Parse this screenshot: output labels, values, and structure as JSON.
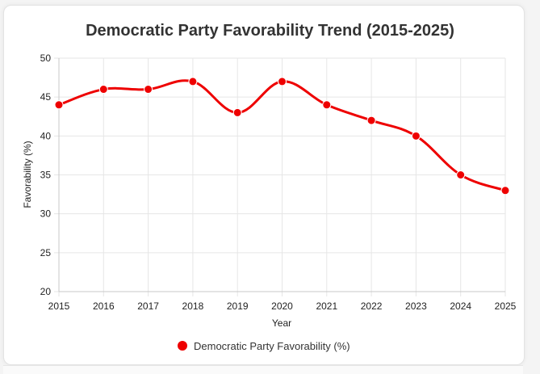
{
  "chart_data": {
    "type": "line",
    "title": "Democratic Party Favorability Trend (2015-2025)",
    "xlabel": "Year",
    "ylabel": "Favorability (%)",
    "ylim": [
      20,
      50
    ],
    "yticks": [
      "20",
      "25",
      "30",
      "35",
      "40",
      "45",
      "50"
    ],
    "categories": [
      "2015",
      "2016",
      "2017",
      "2018",
      "2019",
      "2020",
      "2021",
      "2022",
      "2023",
      "2024",
      "2025"
    ],
    "series": [
      {
        "name": "Democratic Party Favorability (%)",
        "values": [
          44,
          46,
          46,
          47,
          43,
          47,
          44,
          42,
          40,
          35,
          33
        ],
        "color": "#ee0000"
      }
    ],
    "grid": true,
    "legend_position": "bottom",
    "smooth": true
  }
}
